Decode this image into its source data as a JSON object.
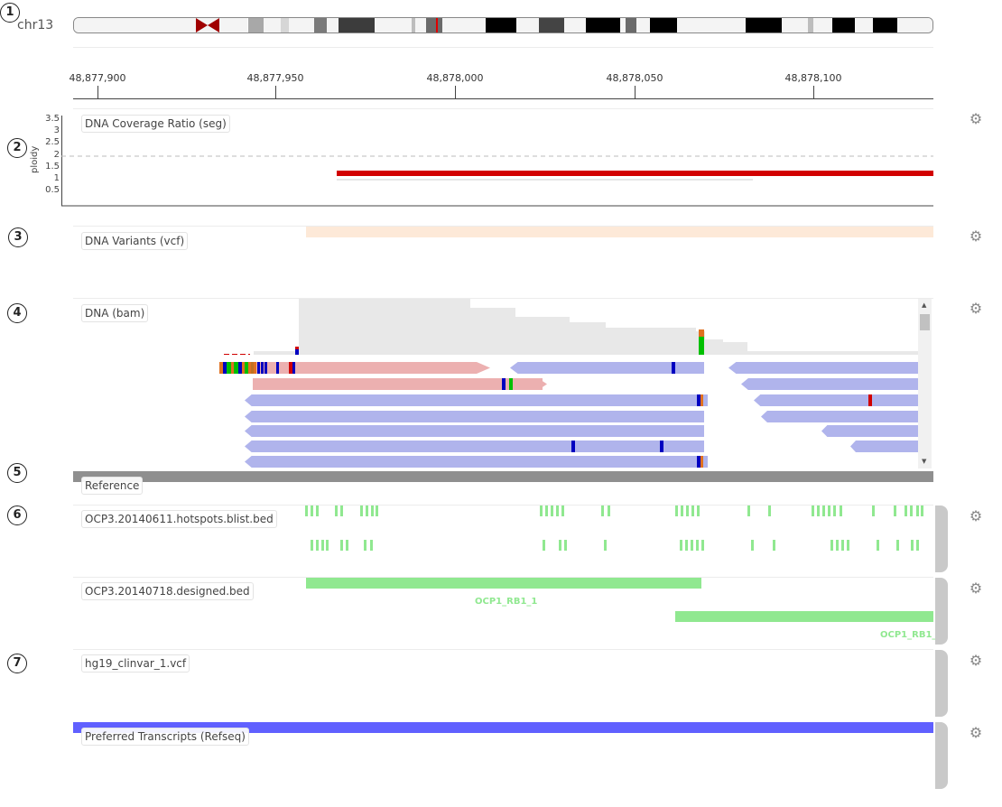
{
  "chromosome": "chr13",
  "ruler": {
    "ticks": [
      "48,877,900",
      "48,877,950",
      "48,878,000",
      "48,878,050",
      "48,878,100"
    ]
  },
  "callouts": [
    "1",
    "2",
    "3",
    "4",
    "5",
    "6",
    "7"
  ],
  "tracks": {
    "coverage": {
      "label": "DNA Coverage Ratio (seg)",
      "axis_title": "ploidy",
      "y_ticks": [
        "3.5",
        "3",
        "2.5",
        "2",
        "1.5",
        "1",
        "0.5"
      ]
    },
    "variants": {
      "label": "DNA Variants (vcf)"
    },
    "bam": {
      "label": "DNA (bam)"
    },
    "reference": {
      "label": "Reference"
    },
    "hotspots": {
      "label": "OCP3.20140611.hotspots.blist.bed"
    },
    "designed": {
      "label": "OCP3.20140718.designed.bed",
      "features": [
        "OCP1_RB1_1",
        "OCP1_RB1_"
      ]
    },
    "clinvar": {
      "label": "hg19_clinvar_1.vcf"
    },
    "transcripts": {
      "label": "Preferred Transcripts (Refseq)"
    }
  },
  "icons": {
    "settings": "gear-icon"
  },
  "colors": {
    "forward_read": "#ecb0b0",
    "reverse_read": "#b0b4ec",
    "coverage_segment": "#d20000",
    "bed_feature": "#90e890",
    "reference_bar": "#8f8f8f",
    "transcript_bar": "#6060ff",
    "variant_region": "#fde9d8",
    "centromere": "#a00000"
  }
}
